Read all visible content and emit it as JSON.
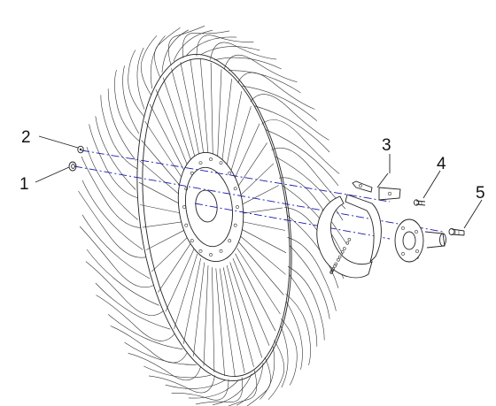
{
  "callouts": [
    {
      "label": "1"
    },
    {
      "label": "2"
    },
    {
      "label": "3"
    },
    {
      "label": "4"
    },
    {
      "label": "5"
    }
  ],
  "colors": {
    "line_art": "#222222",
    "center_lines": "#1a1aa8",
    "background": "#ffffff"
  }
}
